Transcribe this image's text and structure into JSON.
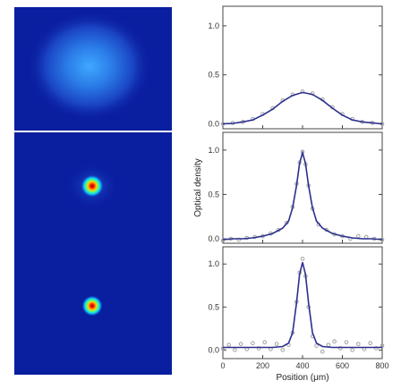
{
  "colors": {
    "image_background": "#0a1ea0",
    "fit_line": "#2b2f8f",
    "data_points": "#a0a0a0",
    "divider": "#ffffff"
  },
  "images": [
    {
      "type": "absorption-image",
      "cloud": "broad-thermal"
    },
    {
      "type": "absorption-image",
      "cloud": "bimodal-peak"
    },
    {
      "type": "absorption-image",
      "cloud": "sharp-peak"
    }
  ],
  "chart_data": [
    {
      "type": "line",
      "xlim": [
        0,
        800
      ],
      "ylim": [
        -0.05,
        1.2
      ],
      "yticks": [
        0.0,
        0.5,
        1.0
      ],
      "ytick_labels": [
        "0.0",
        "0.5",
        "1.0"
      ],
      "series": [
        {
          "kind": "fit",
          "x": [
            0,
            50,
            100,
            150,
            200,
            250,
            300,
            350,
            400,
            450,
            500,
            550,
            600,
            650,
            700,
            750,
            800
          ],
          "y": [
            0.0,
            0.005,
            0.02,
            0.04,
            0.09,
            0.15,
            0.23,
            0.29,
            0.32,
            0.3,
            0.24,
            0.16,
            0.09,
            0.04,
            0.02,
            0.01,
            0.0
          ]
        },
        {
          "kind": "data",
          "x": [
            0,
            50,
            100,
            150,
            200,
            250,
            300,
            350,
            400,
            450,
            500,
            550,
            600,
            650,
            700,
            750,
            800
          ],
          "y": [
            0.0,
            0.01,
            0.02,
            0.05,
            0.1,
            0.16,
            0.24,
            0.3,
            0.33,
            0.31,
            0.25,
            0.17,
            0.1,
            0.05,
            0.02,
            0.01,
            0.0
          ]
        }
      ]
    },
    {
      "type": "line",
      "xlim": [
        0,
        800
      ],
      "ylim": [
        -0.05,
        1.2
      ],
      "yticks": [
        0.0,
        0.5,
        1.0
      ],
      "ytick_labels": [
        "0.0",
        "0.5",
        "1.0"
      ],
      "ylabel": "Optical density",
      "series": [
        {
          "kind": "fit",
          "x": [
            0,
            50,
            100,
            150,
            200,
            250,
            300,
            330,
            350,
            370,
            385,
            400,
            415,
            430,
            450,
            470,
            500,
            550,
            600,
            650,
            700,
            750,
            800
          ],
          "y": [
            -0.01,
            0.0,
            0.0,
            0.01,
            0.03,
            0.06,
            0.12,
            0.2,
            0.35,
            0.6,
            0.85,
            0.97,
            0.85,
            0.6,
            0.35,
            0.2,
            0.12,
            0.06,
            0.03,
            0.01,
            0.0,
            0.0,
            -0.01
          ]
        },
        {
          "kind": "data",
          "x": [
            0,
            40,
            80,
            120,
            160,
            200,
            240,
            280,
            320,
            350,
            370,
            385,
            400,
            415,
            430,
            450,
            480,
            520,
            560,
            600,
            640,
            680,
            720,
            760,
            800
          ],
          "y": [
            -0.02,
            0.0,
            -0.01,
            0.01,
            0.02,
            0.03,
            0.06,
            0.1,
            0.18,
            0.36,
            0.62,
            0.86,
            0.98,
            0.84,
            0.6,
            0.34,
            0.16,
            0.1,
            0.05,
            0.03,
            0.0,
            0.03,
            0.02,
            0.0,
            -0.01
          ]
        }
      ]
    },
    {
      "type": "line",
      "xlim": [
        0,
        800
      ],
      "ylim": [
        -0.1,
        1.2
      ],
      "yticks": [
        0.0,
        0.5,
        1.0
      ],
      "ytick_labels": [
        "0.0",
        "0.5",
        "1.0"
      ],
      "xticks": [
        0,
        200,
        400,
        600,
        800
      ],
      "xtick_labels": [
        "0",
        "200",
        "400",
        "600",
        "800"
      ],
      "xlabel": "Position (μm)",
      "series": [
        {
          "kind": "fit",
          "x": [
            0,
            50,
            100,
            150,
            200,
            250,
            300,
            330,
            350,
            370,
            385,
            400,
            415,
            430,
            450,
            470,
            500,
            550,
            600,
            650,
            700,
            750,
            800
          ],
          "y": [
            0.03,
            0.03,
            0.03,
            0.03,
            0.03,
            0.03,
            0.04,
            0.08,
            0.2,
            0.55,
            0.88,
            1.02,
            0.88,
            0.55,
            0.2,
            0.08,
            0.04,
            0.03,
            0.03,
            0.03,
            0.03,
            0.03,
            0.03
          ]
        },
        {
          "kind": "data",
          "x": [
            0,
            30,
            60,
            90,
            120,
            150,
            180,
            210,
            240,
            270,
            300,
            330,
            350,
            370,
            385,
            400,
            415,
            430,
            450,
            470,
            500,
            530,
            560,
            590,
            620,
            650,
            680,
            710,
            740,
            770,
            800
          ],
          "y": [
            0.02,
            0.06,
            0.0,
            0.07,
            0.01,
            0.08,
            0.02,
            0.09,
            0.01,
            0.07,
            0.0,
            0.06,
            0.2,
            0.56,
            0.9,
            1.06,
            0.86,
            0.5,
            0.16,
            0.05,
            -0.02,
            0.06,
            0.1,
            0.02,
            0.09,
            0.0,
            0.07,
            0.01,
            0.08,
            0.02,
            0.05
          ]
        }
      ]
    }
  ]
}
